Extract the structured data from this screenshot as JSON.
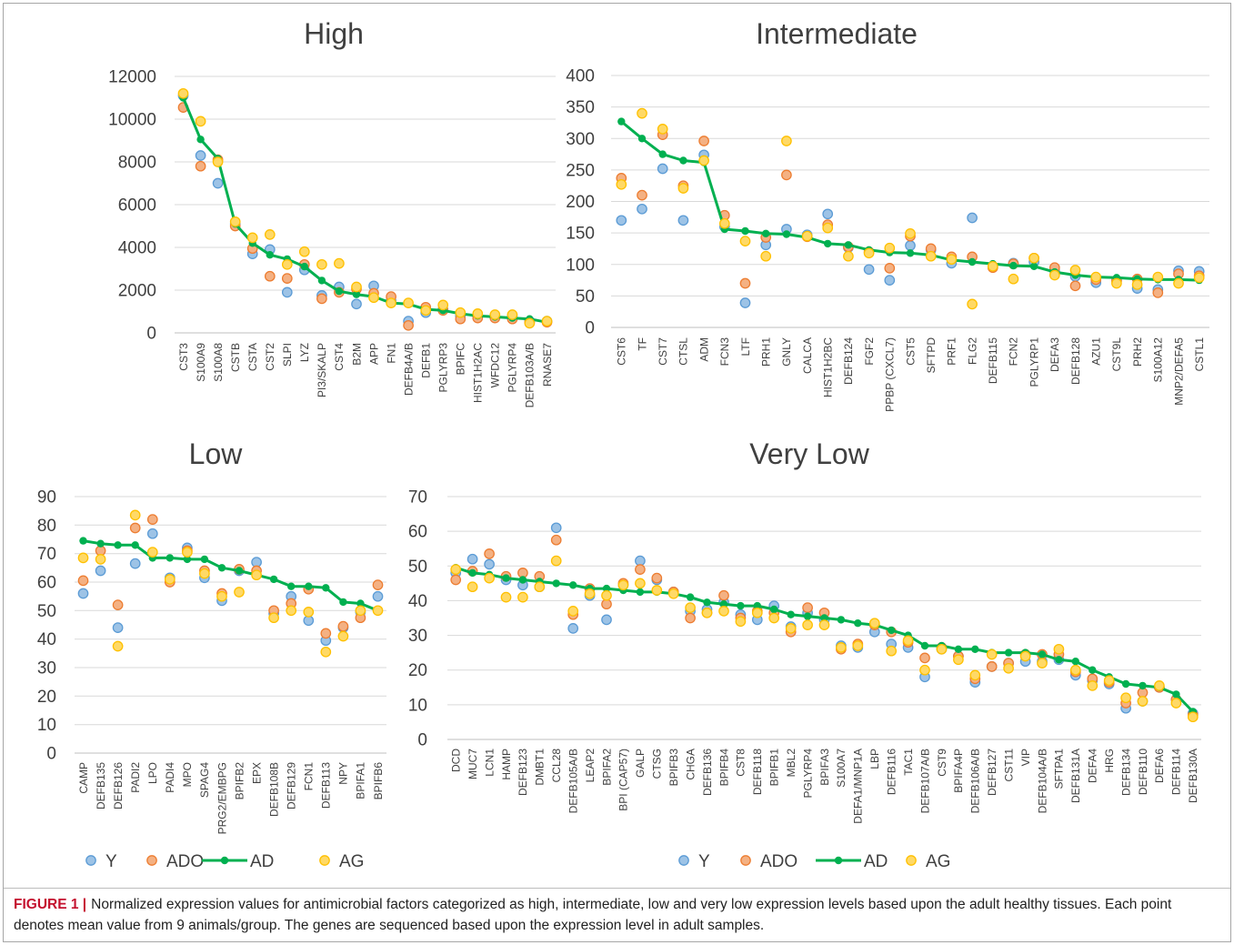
{
  "figure": {
    "caption_label": "FIGURE 1 |",
    "caption_text": "Normalized expression values for antimicrobial factors categorized as high, intermediate, low and very low expression levels based upon the adult healthy tissues. Each point denotes mean value from 9 animals/group. The genes are sequenced based upon the expression level in adult samples."
  },
  "series_styles": {
    "Y": {
      "marker": "circle",
      "fill": "#9dc3e6",
      "stroke": "#5b9bd5"
    },
    "ADO": {
      "marker": "circle",
      "fill": "#f4b183",
      "stroke": "#ed7d31"
    },
    "AD": {
      "marker": "line-dot",
      "fill": "#00b050",
      "stroke": "#00b050"
    },
    "AG": {
      "marker": "circle",
      "fill": "#ffd966",
      "stroke": "#ffc000"
    }
  },
  "chart_data": [
    {
      "type": "line",
      "title": "High",
      "categories": [
        "CST3",
        "S100A9",
        "S100A8",
        "CSTB",
        "CSTA",
        "CST2",
        "SLPI",
        "LYZ",
        "PI3/SKALP",
        "CST4",
        "B2M",
        "APP",
        "FN1",
        "DEFB4A/B",
        "DEFB1",
        "PGLYRP3",
        "BPIFC",
        "HIST1H2AC",
        "WFDC12",
        "PGLYRP4",
        "DEFB103A/B",
        "RNASE7"
      ],
      "ylim": [
        0,
        12000
      ],
      "yticks": [
        0,
        2000,
        4000,
        6000,
        8000,
        10000,
        12000
      ],
      "grid": true,
      "legend": "none",
      "series": [
        {
          "name": "Y",
          "values": [
            11100,
            8300,
            7000,
            5100,
            3700,
            3900,
            1900,
            2950,
            1750,
            2150,
            1350,
            2200,
            1500,
            550,
            950,
            1100,
            800,
            750,
            750,
            800,
            550,
            550
          ]
        },
        {
          "name": "ADO",
          "values": [
            10550,
            7800,
            8100,
            5000,
            3950,
            2650,
            2550,
            3200,
            1600,
            1900,
            2050,
            1850,
            1700,
            350,
            1200,
            1050,
            650,
            700,
            700,
            650,
            500,
            500
          ]
        },
        {
          "name": "AD",
          "values": [
            11000,
            9050,
            8150,
            5100,
            4200,
            3650,
            3450,
            3100,
            2450,
            1950,
            1800,
            1700,
            1400,
            1350,
            1100,
            1050,
            900,
            800,
            750,
            700,
            650,
            500
          ]
        },
        {
          "name": "AG",
          "values": [
            11200,
            9900,
            8000,
            5200,
            4450,
            4600,
            3200,
            3800,
            3200,
            3250,
            2150,
            1650,
            1400,
            1400,
            1050,
            1300,
            950,
            900,
            850,
            850,
            450,
            550
          ]
        }
      ]
    },
    {
      "type": "line",
      "title": "Intermediate",
      "categories": [
        "CST6",
        "TF",
        "CST7",
        "CTSL",
        "ADM",
        "FCN3",
        "LTF",
        "PRH1",
        "GNLY",
        "CALCA",
        "HIST1H2BC",
        "DEFB124",
        "FGF2",
        "PPBP (CXCL7)",
        "CST5",
        "SFTPD",
        "PRF1",
        "FLG2",
        "DEFB115",
        "FCN2",
        "PGLYRP1",
        "DEFA3",
        "DEFB128",
        "AZU1",
        "CST9L",
        "PRH2",
        "S100A12",
        "MNP2/DEFA5",
        "CSTL1"
      ],
      "ylim": [
        0,
        400
      ],
      "yticks": [
        0,
        50,
        100,
        150,
        200,
        250,
        300,
        350,
        400
      ],
      "grid": true,
      "legend": "none",
      "series": [
        {
          "name": "Y",
          "values": [
            170,
            188,
            252,
            170,
            274,
            160,
            39,
            131,
            156,
            147,
            180,
            127,
            92,
            75,
            130,
            123,
            102,
            174,
            96,
            102,
            104,
            90,
            81,
            71,
            75,
            62,
            60,
            90,
            89
          ]
        },
        {
          "name": "ADO",
          "values": [
            237,
            210,
            306,
            225,
            296,
            178,
            70,
            143,
            242,
            144,
            163,
            128,
            120,
            94,
            145,
            125,
            112,
            112,
            95,
            101,
            110,
            95,
            66,
            76,
            74,
            77,
            55,
            85,
            82
          ]
        },
        {
          "name": "AD",
          "values": [
            327,
            300,
            275,
            265,
            262,
            156,
            153,
            149,
            148,
            143,
            133,
            131,
            123,
            119,
            118,
            115,
            107,
            104,
            101,
            98,
            97,
            88,
            83,
            80,
            79,
            77,
            76,
            76,
            75
          ]
        },
        {
          "name": "AG",
          "values": [
            227,
            340,
            315,
            221,
            265,
            165,
            137,
            113,
            296,
            145,
            158,
            113,
            118,
            126,
            149,
            113,
            108,
            37,
            97,
            77,
            110,
            83,
            91,
            80,
            70,
            68,
            80,
            70,
            79
          ]
        }
      ]
    },
    {
      "type": "line",
      "title": "Low",
      "categories": [
        "CAMP",
        "DEFB135",
        "DEFB126",
        "PADI2",
        "LPO",
        "PADI4",
        "MPO",
        "SPAG4",
        "PRG2/EMBPG",
        "BPIFB2",
        "EPX",
        "DEFB108B",
        "DEFB129",
        "FCN1",
        "DEFB113",
        "NPY",
        "BPIFA1",
        "BPIFB6"
      ],
      "ylim": [
        0,
        90
      ],
      "yticks": [
        0,
        10,
        20,
        30,
        40,
        50,
        60,
        70,
        80,
        90
      ],
      "grid": true,
      "legend": "bottom",
      "series": [
        {
          "name": "Y",
          "values": [
            56,
            64,
            44,
            66.5,
            77,
            61.5,
            72,
            61.5,
            53.5,
            64,
            67,
            49,
            55,
            46.5,
            39.5,
            44,
            49.5,
            55
          ]
        },
        {
          "name": "ADO",
          "values": [
            60.5,
            71,
            52,
            79,
            82,
            60,
            71,
            64,
            56,
            64.5,
            64,
            50,
            52.5,
            57.5,
            42,
            44.5,
            47.5,
            59
          ]
        },
        {
          "name": "AD",
          "values": [
            74.5,
            73.5,
            73,
            73,
            68.5,
            68.5,
            68,
            68,
            65,
            64,
            62.5,
            61,
            58.5,
            58.5,
            58,
            53,
            52.5,
            50
          ]
        },
        {
          "name": "AG",
          "values": [
            68.5,
            68,
            37.5,
            83.5,
            70.5,
            61,
            70.5,
            63,
            55,
            56.5,
            62.5,
            47.5,
            50,
            49.5,
            35.5,
            41,
            50,
            50
          ]
        }
      ]
    },
    {
      "type": "line",
      "title": "Very Low",
      "categories": [
        "DCD",
        "MUC7",
        "LCN1",
        "HAMP",
        "DEFB123",
        "DMBT1",
        "CCL28",
        "DEFB105A/B",
        "LEAP2",
        "BPIFA2",
        "BPI (CAP57)",
        "GALP",
        "CTSG",
        "BPIFB3",
        "CHGA",
        "DEFB136",
        "BPIFB4",
        "CST8",
        "DEFB118",
        "BPIFB1",
        "MBL2",
        "PGLYRP4",
        "BPIFA3",
        "S100A7",
        "DEFA1/MNP1A",
        "LBP",
        "DEFB116",
        "TAC1",
        "DEFB107A/B",
        "CST9",
        "BPIFA4P",
        "DEFB106A/B",
        "DEFB127",
        "CST11",
        "VIP",
        "DEFB104A/B",
        "SFTPA1",
        "DEFB131A",
        "DEFA4",
        "HRG",
        "DEFB134",
        "DEFB110",
        "DEFA6",
        "DEFB114",
        "DEFB130A"
      ],
      "ylim": [
        0,
        70
      ],
      "yticks": [
        0,
        10,
        20,
        30,
        40,
        50,
        60,
        70
      ],
      "grid": true,
      "legend": "bottom",
      "series": [
        {
          "name": "Y",
          "values": [
            48,
            52,
            50.5,
            46,
            44.5,
            44,
            61,
            32,
            41.5,
            34.5,
            44.5,
            51.5,
            46,
            42.5,
            37,
            37.5,
            39.5,
            36,
            34.5,
            38.5,
            32.5,
            36.5,
            34.5,
            27,
            26.5,
            31,
            27.5,
            26.5,
            18,
            26,
            24,
            16.5,
            21,
            22,
            22.5,
            22.5,
            23,
            18.5,
            17,
            16,
            9,
            11,
            15,
            11.5,
            7.5
          ]
        },
        {
          "name": "ADO",
          "values": [
            46,
            48.5,
            53.5,
            47,
            48,
            47,
            57.5,
            36,
            43.5,
            39,
            45,
            49,
            46.5,
            42.5,
            35,
            36.5,
            41.5,
            35,
            37,
            36.5,
            31,
            38,
            36.5,
            26,
            27.5,
            33,
            31,
            28,
            23.5,
            26.5,
            24,
            17.5,
            21,
            22,
            24.5,
            24.5,
            24.5,
            19.5,
            17.5,
            16.5,
            10.5,
            13.5,
            15,
            11.5,
            7
          ]
        },
        {
          "name": "AD",
          "values": [
            49.5,
            48,
            47.5,
            46.5,
            46,
            45.5,
            45,
            44.5,
            43.5,
            43.5,
            43,
            42.5,
            42.5,
            42,
            41,
            39.5,
            39,
            38.5,
            38.5,
            37.5,
            36,
            35.5,
            35,
            34.5,
            33.5,
            33,
            31.5,
            30,
            27,
            27,
            26,
            26,
            25,
            25,
            25,
            24.5,
            23,
            22.5,
            20,
            18,
            16,
            15.5,
            15,
            13,
            8
          ]
        },
        {
          "name": "AG",
          "values": [
            49,
            44,
            46.5,
            41,
            41,
            44,
            51.5,
            37,
            42,
            41.5,
            44.5,
            45,
            43,
            42,
            38,
            36.5,
            37,
            34,
            36.5,
            35,
            32,
            33,
            33,
            26.5,
            27,
            33.5,
            25.5,
            28.5,
            20,
            26,
            23,
            18.5,
            24.5,
            20.5,
            24,
            22,
            26,
            20,
            15.5,
            17,
            12,
            11,
            15.5,
            10.5,
            6.5
          ]
        }
      ]
    }
  ]
}
